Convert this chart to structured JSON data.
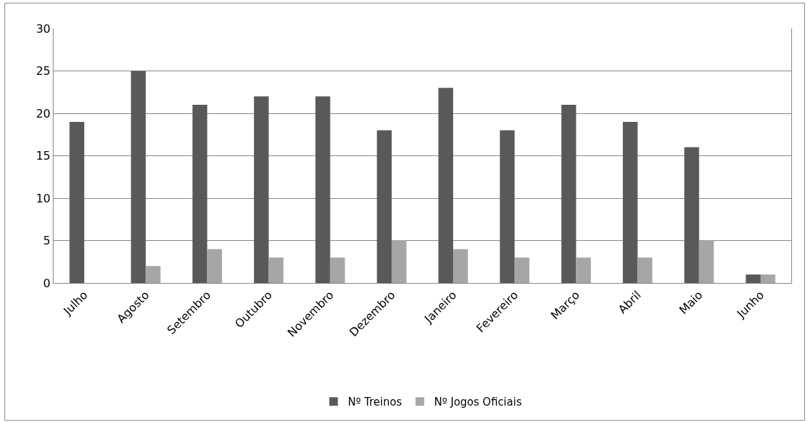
{
  "chart_data": {
    "type": "bar",
    "categories": [
      "Julho",
      "Agosto",
      "Setembro",
      "Outubro",
      "Novembro",
      "Dezembro",
      "Janeiro",
      "Fevereiro",
      "Março",
      "Abril",
      "Maio",
      "Junho"
    ],
    "series": [
      {
        "name": "Nº Treinos",
        "color": "#595959",
        "values": [
          19,
          25,
          21,
          22,
          22,
          18,
          23,
          18,
          21,
          19,
          16,
          1
        ]
      },
      {
        "name": "Nº Jogos Oficiais",
        "color": "#a6a6a6",
        "values": [
          0,
          2,
          4,
          3,
          3,
          5,
          4,
          3,
          3,
          3,
          5,
          1
        ]
      }
    ],
    "ylim": [
      0,
      30
    ],
    "yticks": [
      0,
      5,
      10,
      15,
      20,
      25,
      30
    ],
    "grid": "y",
    "legend": "bottom"
  }
}
